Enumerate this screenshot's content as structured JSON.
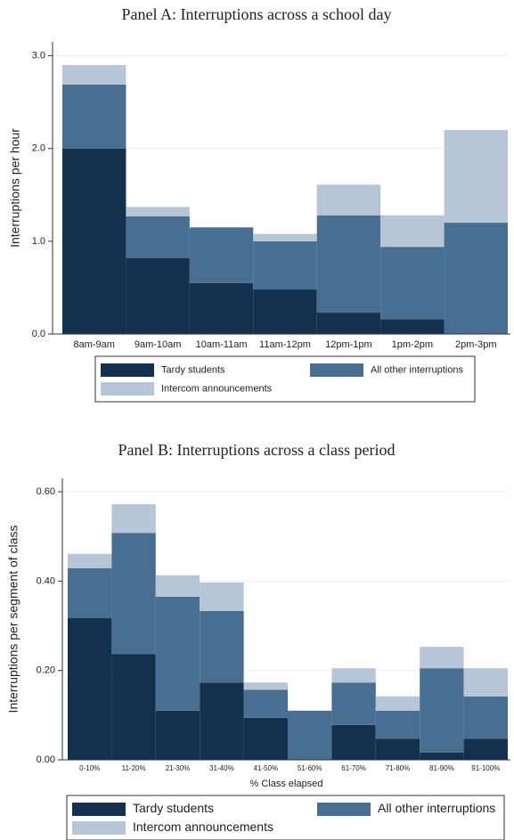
{
  "chart_data": [
    {
      "type": "stacked_bar",
      "title": "Panel A: Interruptions across a school day",
      "y_label": "Interruptions per hour",
      "categories": [
        "8am-9am",
        "9am-10am",
        "10am-11am",
        "11am-12pm",
        "12pm-1pm",
        "1pm-2pm",
        "2pm-3pm"
      ],
      "series": [
        {
          "name": "Tardy students",
          "color": "#13304f",
          "values": [
            2.0,
            0.82,
            0.55,
            0.48,
            0.23,
            0.16,
            0
          ]
        },
        {
          "name": "All other interruptions",
          "color": "#486f92",
          "values": [
            0.69,
            0.45,
            0.6,
            0.52,
            1.05,
            0.78,
            1.2
          ]
        },
        {
          "name": "Intercom announcements",
          "color": "#b6c6d6",
          "values": [
            0.21,
            0.1,
            0,
            0.08,
            0.33,
            0.34,
            1.0
          ]
        }
      ],
      "ylim": [
        0,
        3.15
      ],
      "yticks": [
        {
          "value": 0,
          "label": "0.0"
        },
        {
          "value": 1,
          "label": "1.0"
        },
        {
          "value": 2,
          "label": "2.0"
        },
        {
          "value": 3,
          "label": "3.0"
        }
      ],
      "grid": true
    },
    {
      "type": "stacked_bar",
      "title": "Panel B: Interruptions across a class period",
      "y_label": "Interruptions per segment of class",
      "x_label": "% Class elapsed",
      "categories": [
        "0-10%",
        "11-20%",
        "21-30%",
        "31-40%",
        "41-50%",
        "51-60%",
        "61-70%",
        "71-80%",
        "81-90%",
        "91-100%"
      ],
      "series": [
        {
          "name": "Tardy students",
          "color": "#13304f",
          "values": [
            0.317,
            0.237,
            0.11,
            0.173,
            0.094,
            0,
            0.078,
            0.047,
            0.016,
            0.047
          ]
        },
        {
          "name": "All other interruptions",
          "color": "#486f92",
          "values": [
            0.112,
            0.271,
            0.255,
            0.16,
            0.063,
            0.11,
            0.095,
            0.063,
            0.189,
            0.095
          ]
        },
        {
          "name": "Intercom announcements",
          "color": "#b6c6d6",
          "values": [
            0.032,
            0.064,
            0.048,
            0.064,
            0.016,
            0,
            0.032,
            0.032,
            0.048,
            0.063
          ]
        }
      ],
      "ylim": [
        0,
        0.63
      ],
      "yticks": [
        {
          "value": 0,
          "label": "0.00"
        },
        {
          "value": 0.2,
          "label": "0.20"
        },
        {
          "value": 0.4,
          "label": "0.40"
        },
        {
          "value": 0.6,
          "label": "0.60"
        }
      ],
      "grid": true
    }
  ]
}
